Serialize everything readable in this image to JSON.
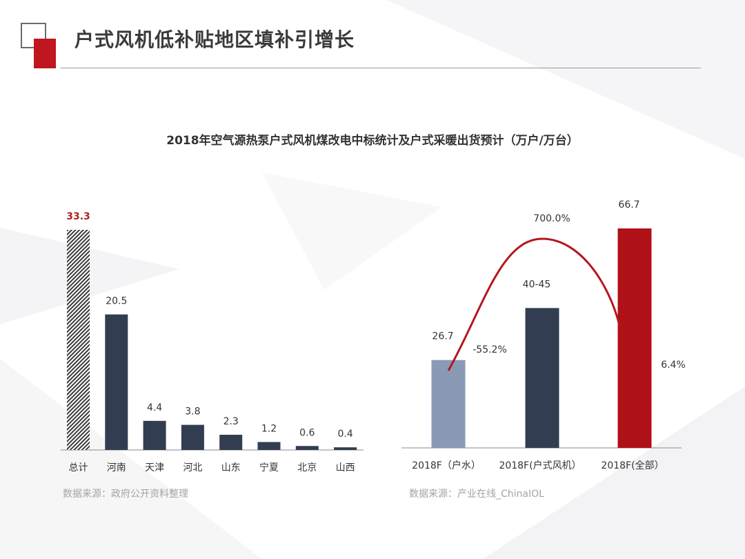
{
  "header": {
    "title": "户式风机低补贴地区填补引增长",
    "chart_title": "2018年空气源热泵户式风机煤改电中标统计及户式采暖出货预计（万户/万台）"
  },
  "sources": {
    "left": "数据来源：政府公开资料整理",
    "right": "数据来源：产业在线_ChinaIOL"
  },
  "colors": {
    "accent_red": "#c0161f",
    "dark_bar": "#323d52",
    "light_bar": "#8a9ab5",
    "dark_red_bar": "#b01018",
    "line_red": "#b5161f",
    "total_label": "#b22222"
  },
  "chart_data": [
    {
      "type": "bar",
      "categories": [
        "总计",
        "河南",
        "天津",
        "河北",
        "山东",
        "宁夏",
        "北京",
        "山西"
      ],
      "values": [
        33.3,
        20.5,
        4.4,
        3.8,
        2.3,
        1.2,
        0.6,
        0.4
      ],
      "labels": [
        "33.3",
        "20.5",
        "4.4",
        "3.8",
        "2.3",
        "1.2",
        "0.6",
        "0.4"
      ],
      "highlight": "总计",
      "ylim": [
        0,
        33.3
      ]
    },
    {
      "type": "bar",
      "categories": [
        "2018F（户水）",
        "2018F(户式风机）",
        "2018F(全部）"
      ],
      "values": [
        26.7,
        42.5,
        66.7
      ],
      "labels": [
        "26.7",
        "40-45",
        "66.7"
      ],
      "ylim": [
        0,
        66.7
      ],
      "growth_line": {
        "type": "line",
        "values": [
          -55.2,
          700.0,
          6.4
        ],
        "labels": [
          "-55.2%",
          "700.0%",
          "6.4%"
        ]
      }
    }
  ]
}
